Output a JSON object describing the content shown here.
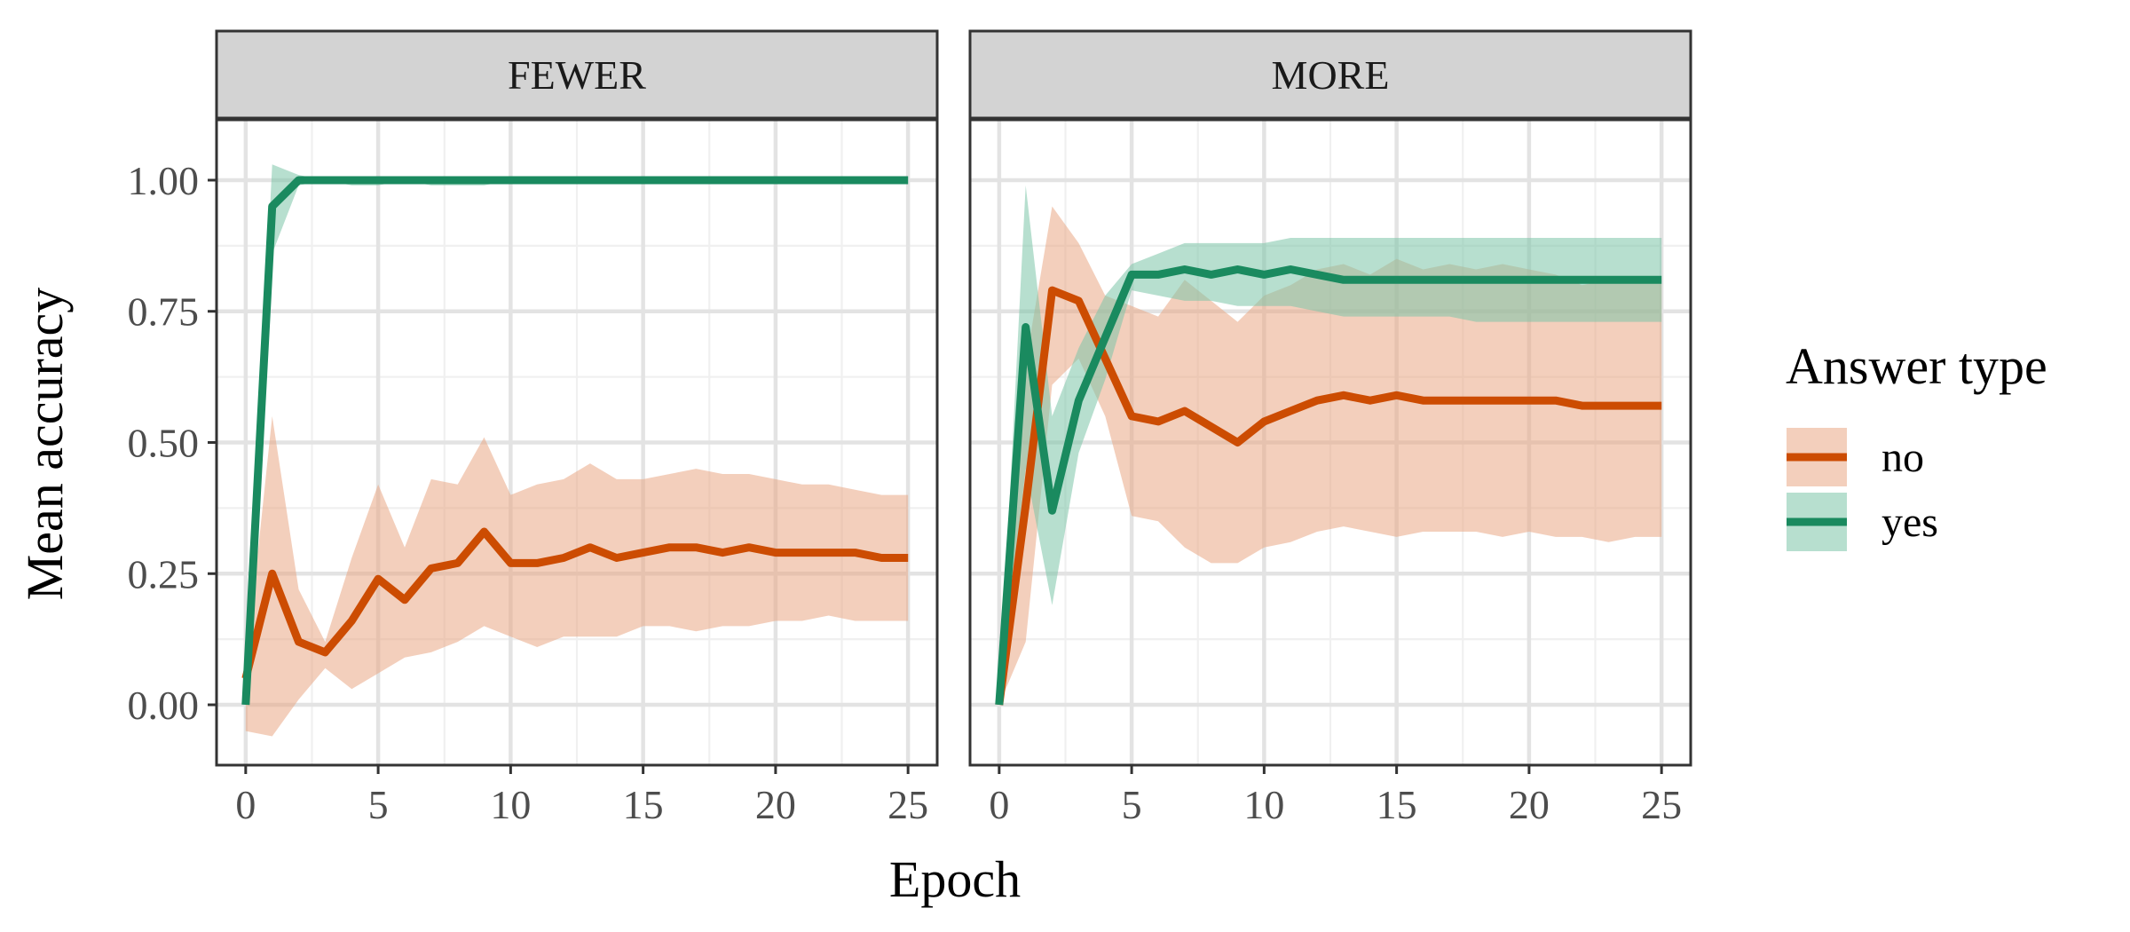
{
  "chart_data": {
    "type": "line",
    "xlabel": "Epoch",
    "ylabel": "Mean accuracy",
    "xlim": [
      -1.1,
      26.1
    ],
    "ylim": [
      -0.115,
      1.115
    ],
    "x_ticks": [
      0,
      5,
      10,
      15,
      20,
      25
    ],
    "x_tick_labels": [
      "0",
      "5",
      "10",
      "15",
      "20",
      "25"
    ],
    "y_ticks": [
      0,
      0.25,
      0.5,
      0.75,
      1.0
    ],
    "y_tick_labels": [
      "0.00",
      "0.25",
      "0.50",
      "0.75",
      "1.00"
    ],
    "grid": true,
    "legend": {
      "title": "Answer type",
      "position": "right",
      "entries": [
        {
          "label": "no",
          "color": "#cc4c02"
        },
        {
          "label": "yes",
          "color": "#1a8a5f"
        }
      ]
    },
    "colors": {
      "no_line": "#cc4c02",
      "no_band": "#e9a885",
      "yes_line": "#1a8a5f",
      "yes_band": "#7cc4a8"
    },
    "panels": [
      {
        "title": "FEWER",
        "x": [
          0,
          1,
          2,
          3,
          4,
          5,
          6,
          7,
          8,
          9,
          10,
          11,
          12,
          13,
          14,
          15,
          16,
          17,
          18,
          19,
          20,
          21,
          22,
          23,
          24,
          25
        ],
        "series": [
          {
            "name": "no",
            "values": [
              0.05,
              0.25,
              0.12,
              0.1,
              0.16,
              0.24,
              0.2,
              0.26,
              0.27,
              0.33,
              0.27,
              0.27,
              0.28,
              0.3,
              0.28,
              0.29,
              0.3,
              0.3,
              0.29,
              0.3,
              0.29,
              0.29,
              0.29,
              0.29,
              0.28,
              0.28
            ],
            "lower": [
              -0.05,
              -0.06,
              0.01,
              0.07,
              0.03,
              0.06,
              0.09,
              0.1,
              0.12,
              0.15,
              0.13,
              0.11,
              0.13,
              0.13,
              0.13,
              0.15,
              0.15,
              0.14,
              0.15,
              0.15,
              0.16,
              0.16,
              0.17,
              0.16,
              0.16,
              0.16
            ],
            "upper": [
              0.07,
              0.55,
              0.22,
              0.12,
              0.28,
              0.42,
              0.3,
              0.43,
              0.42,
              0.51,
              0.4,
              0.42,
              0.43,
              0.46,
              0.43,
              0.43,
              0.44,
              0.45,
              0.44,
              0.44,
              0.43,
              0.42,
              0.42,
              0.41,
              0.4,
              0.4
            ]
          },
          {
            "name": "yes",
            "values": [
              0.0,
              0.95,
              1.0,
              1.0,
              1.0,
              1.0,
              1.0,
              1.0,
              1.0,
              1.0,
              1.0,
              1.0,
              1.0,
              1.0,
              1.0,
              1.0,
              1.0,
              1.0,
              1.0,
              1.0,
              1.0,
              1.0,
              1.0,
              1.0,
              1.0,
              1.0
            ],
            "lower": [
              0.0,
              0.86,
              0.99,
              1.0,
              0.99,
              0.99,
              1.0,
              0.99,
              0.99,
              0.99,
              1.0,
              1.0,
              1.0,
              1.0,
              1.0,
              1.0,
              1.0,
              1.0,
              1.0,
              1.0,
              1.0,
              1.0,
              1.0,
              1.0,
              1.0,
              1.0
            ],
            "upper": [
              0.0,
              1.03,
              1.01,
              1.0,
              1.0,
              1.0,
              1.0,
              1.0,
              1.0,
              1.0,
              1.0,
              1.0,
              1.0,
              1.0,
              1.0,
              1.0,
              1.0,
              1.0,
              1.0,
              1.0,
              1.0,
              1.0,
              1.0,
              1.0,
              1.0,
              1.0
            ]
          }
        ]
      },
      {
        "title": "MORE",
        "x": [
          0,
          1,
          2,
          3,
          4,
          5,
          6,
          7,
          8,
          9,
          10,
          11,
          12,
          13,
          14,
          15,
          16,
          17,
          18,
          19,
          20,
          21,
          22,
          23,
          24,
          25
        ],
        "series": [
          {
            "name": "no",
            "values": [
              0.0,
              0.38,
              0.79,
              0.77,
              0.66,
              0.55,
              0.54,
              0.56,
              0.53,
              0.5,
              0.54,
              0.56,
              0.58,
              0.59,
              0.58,
              0.59,
              0.58,
              0.58,
              0.58,
              0.58,
              0.58,
              0.58,
              0.57,
              0.57,
              0.57,
              0.57
            ],
            "lower": [
              0.0,
              0.12,
              0.61,
              0.66,
              0.55,
              0.36,
              0.35,
              0.3,
              0.27,
              0.27,
              0.3,
              0.31,
              0.33,
              0.34,
              0.33,
              0.32,
              0.33,
              0.33,
              0.33,
              0.32,
              0.33,
              0.32,
              0.32,
              0.31,
              0.32,
              0.32
            ],
            "upper": [
              0.0,
              0.65,
              0.95,
              0.88,
              0.78,
              0.76,
              0.74,
              0.81,
              0.77,
              0.73,
              0.78,
              0.8,
              0.83,
              0.84,
              0.82,
              0.85,
              0.83,
              0.84,
              0.83,
              0.84,
              0.83,
              0.82,
              0.8,
              0.81,
              0.81,
              0.81
            ]
          },
          {
            "name": "yes",
            "values": [
              0.0,
              0.72,
              0.37,
              0.58,
              0.7,
              0.82,
              0.82,
              0.83,
              0.82,
              0.83,
              0.82,
              0.83,
              0.82,
              0.81,
              0.81,
              0.81,
              0.81,
              0.81,
              0.81,
              0.81,
              0.81,
              0.81,
              0.81,
              0.81,
              0.81,
              0.81
            ],
            "lower": [
              0.0,
              0.45,
              0.19,
              0.48,
              0.62,
              0.79,
              0.78,
              0.77,
              0.77,
              0.76,
              0.76,
              0.76,
              0.75,
              0.74,
              0.74,
              0.74,
              0.74,
              0.74,
              0.73,
              0.73,
              0.73,
              0.73,
              0.73,
              0.73,
              0.73,
              0.73
            ],
            "upper": [
              0.0,
              0.99,
              0.55,
              0.68,
              0.78,
              0.84,
              0.86,
              0.88,
              0.88,
              0.88,
              0.88,
              0.89,
              0.89,
              0.89,
              0.89,
              0.89,
              0.89,
              0.89,
              0.89,
              0.89,
              0.89,
              0.89,
              0.89,
              0.89,
              0.89,
              0.89
            ]
          }
        ]
      }
    ]
  }
}
